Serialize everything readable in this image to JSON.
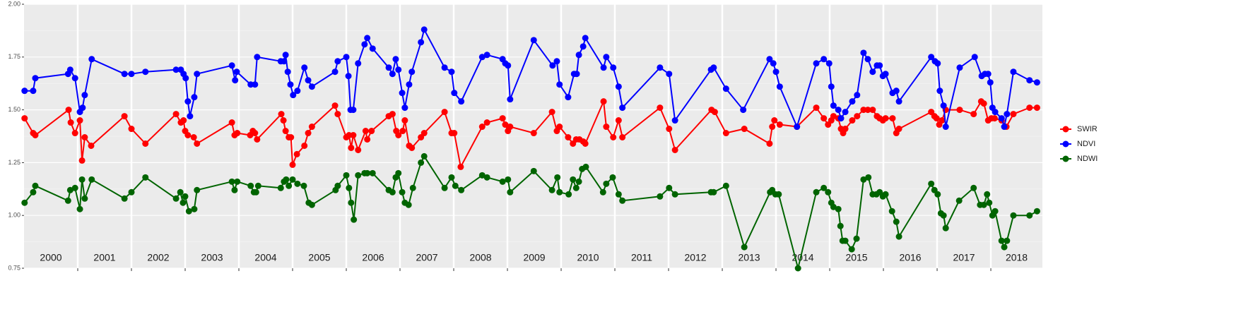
{
  "chart_data": {
    "type": "line",
    "xlim": [
      2000,
      2018.96
    ],
    "ylim": [
      0.75,
      2.0
    ],
    "yticks": [
      {
        "value": 0.75,
        "label": "0.75"
      },
      {
        "value": 1.0,
        "label": "1.00"
      },
      {
        "value": 1.25,
        "label": "1.25"
      },
      {
        "value": 1.5,
        "label": "1.50"
      },
      {
        "value": 1.75,
        "label": "1.75"
      },
      {
        "value": 2.0,
        "label": "2.00"
      }
    ],
    "yminor": [
      0.875,
      1.125,
      1.375,
      1.625,
      1.875
    ],
    "xticks": [
      2001,
      2002,
      2003,
      2004,
      2005,
      2006,
      2007,
      2008,
      2009,
      2010,
      2011,
      2012,
      2013,
      2014,
      2015,
      2016,
      2017,
      2018
    ],
    "year_labels": [
      "2000",
      "2001",
      "2002",
      "2003",
      "2004",
      "2005",
      "2006",
      "2007",
      "2008",
      "2009",
      "2010",
      "2011",
      "2012",
      "2013",
      "2014",
      "2015",
      "2016",
      "2017",
      "2018"
    ],
    "grid": true,
    "legend": "right",
    "series": [
      {
        "name": "SWIR",
        "color": "#ff0000",
        "x": [
          2000.01,
          2000.17,
          2000.21,
          2000.83,
          2000.87,
          2000.95,
          2001.04,
          2001.08,
          2001.13,
          2001.25,
          2001.87,
          2002.0,
          2002.26,
          2002.83,
          2002.92,
          2002.97,
          2003.0,
          2003.05,
          2003.16,
          2003.22,
          2003.87,
          2003.92,
          2003.97,
          2004.21,
          2004.26,
          2004.3,
          2004.34,
          2004.79,
          2004.83,
          2004.87,
          2004.93,
          2004.97,
          2005.0,
          2005.08,
          2005.22,
          2005.29,
          2005.36,
          2005.79,
          2005.84,
          2006.0,
          2006.05,
          2006.09,
          2006.13,
          2006.22,
          2006.36,
          2006.39,
          2006.47,
          2006.79,
          2006.86,
          2006.93,
          2006.97,
          2007.05,
          2007.09,
          2007.17,
          2007.22,
          2007.39,
          2007.45,
          2007.83,
          2007.96,
          2008.01,
          2008.13,
          2008.53,
          2008.62,
          2008.91,
          2008.96,
          2009.01,
          2009.05,
          2009.49,
          2009.83,
          2009.92,
          2009.97,
          2010.13,
          2010.22,
          2010.28,
          2010.34,
          2010.41,
          2010.45,
          2010.79,
          2010.84,
          2010.97,
          2011.07,
          2011.14,
          2011.84,
          2012.01,
          2012.12,
          2012.8,
          2012.86,
          2013.07,
          2013.41,
          2013.88,
          2013.93,
          2013.97,
          2014.07,
          2014.39,
          2014.75,
          2014.89,
          2014.97,
          2015.03,
          2015.07,
          2015.16,
          2015.21,
          2015.25,
          2015.29,
          2015.42,
          2015.51,
          2015.63,
          2015.71,
          2015.8,
          2015.88,
          2015.93,
          2015.99,
          2016.04,
          2016.17,
          2016.24,
          2016.29,
          2016.89,
          2016.95,
          2016.99,
          2017.04,
          2017.09,
          2017.16,
          2017.42,
          2017.68,
          2017.82,
          2017.87,
          2017.95,
          2018.01,
          2018.07,
          2018.2,
          2018.29,
          2018.42,
          2018.72,
          2018.86
        ],
        "values": [
          1.46,
          1.39,
          1.38,
          1.5,
          1.44,
          1.39,
          1.45,
          1.26,
          1.37,
          1.33,
          1.47,
          1.41,
          1.34,
          1.48,
          1.44,
          1.45,
          1.4,
          1.38,
          1.37,
          1.34,
          1.44,
          1.38,
          1.39,
          1.38,
          1.4,
          1.39,
          1.36,
          1.48,
          1.45,
          1.4,
          1.37,
          1.37,
          1.24,
          1.29,
          1.33,
          1.39,
          1.42,
          1.52,
          1.48,
          1.37,
          1.38,
          1.32,
          1.38,
          1.31,
          1.4,
          1.36,
          1.4,
          1.47,
          1.48,
          1.4,
          1.38,
          1.4,
          1.45,
          1.33,
          1.32,
          1.37,
          1.39,
          1.49,
          1.39,
          1.39,
          1.23,
          1.42,
          1.44,
          1.46,
          1.43,
          1.4,
          1.42,
          1.39,
          1.49,
          1.4,
          1.42,
          1.37,
          1.34,
          1.36,
          1.36,
          1.35,
          1.34,
          1.54,
          1.42,
          1.37,
          1.45,
          1.37,
          1.51,
          1.41,
          1.31,
          1.5,
          1.49,
          1.39,
          1.41,
          1.34,
          1.42,
          1.45,
          1.43,
          1.42,
          1.51,
          1.46,
          1.43,
          1.45,
          1.47,
          1.46,
          1.41,
          1.39,
          1.41,
          1.45,
          1.47,
          1.5,
          1.5,
          1.5,
          1.47,
          1.46,
          1.45,
          1.46,
          1.46,
          1.39,
          1.41,
          1.49,
          1.47,
          1.46,
          1.43,
          1.45,
          1.5,
          1.5,
          1.48,
          1.54,
          1.53,
          1.45,
          1.46,
          1.46,
          1.45,
          1.42,
          1.48,
          1.51,
          1.51
        ]
      },
      {
        "name": "NDVI",
        "color": "#0000ff",
        "x": [
          2000.01,
          2000.17,
          2000.21,
          2000.82,
          2000.86,
          2000.95,
          2001.04,
          2001.09,
          2001.13,
          2001.26,
          2001.87,
          2002.0,
          2002.26,
          2002.83,
          2002.92,
          2002.97,
          2003.01,
          2003.05,
          2003.09,
          2003.17,
          2003.22,
          2003.87,
          2003.93,
          2003.96,
          2004.22,
          2004.3,
          2004.34,
          2004.78,
          2004.84,
          2004.87,
          2004.91,
          2004.96,
          2005.01,
          2005.09,
          2005.22,
          2005.29,
          2005.36,
          2005.79,
          2005.84,
          2006.0,
          2006.04,
          2006.08,
          2006.13,
          2006.22,
          2006.34,
          2006.39,
          2006.49,
          2006.79,
          2006.86,
          2006.92,
          2006.97,
          2007.04,
          2007.09,
          2007.17,
          2007.22,
          2007.39,
          2007.45,
          2007.83,
          2007.96,
          2008.01,
          2008.14,
          2008.53,
          2008.62,
          2008.91,
          2008.96,
          2009.01,
          2009.05,
          2009.49,
          2009.84,
          2009.92,
          2009.97,
          2010.13,
          2010.24,
          2010.29,
          2010.33,
          2010.41,
          2010.45,
          2010.79,
          2010.84,
          2010.97,
          2011.07,
          2011.14,
          2011.84,
          2012.01,
          2012.12,
          2012.79,
          2012.84,
          2013.07,
          2013.39,
          2013.88,
          2013.95,
          2014.0,
          2014.07,
          2014.39,
          2014.75,
          2014.89,
          2014.99,
          2015.03,
          2015.07,
          2015.16,
          2015.21,
          2015.29,
          2015.42,
          2015.51,
          2015.63,
          2015.71,
          2015.8,
          2015.88,
          2015.93,
          2015.99,
          2016.04,
          2016.17,
          2016.24,
          2016.29,
          2016.89,
          2016.96,
          2017.01,
          2017.05,
          2017.12,
          2017.16,
          2017.42,
          2017.7,
          2017.83,
          2017.89,
          2017.95,
          2017.99,
          2018.03,
          2018.08,
          2018.2,
          2018.25,
          2018.3,
          2018.42,
          2018.72,
          2018.86
        ],
        "values": [
          1.59,
          1.59,
          1.65,
          1.67,
          1.69,
          1.65,
          1.49,
          1.51,
          1.57,
          1.74,
          1.67,
          1.67,
          1.68,
          1.69,
          1.69,
          1.67,
          1.65,
          1.54,
          1.47,
          1.56,
          1.67,
          1.71,
          1.64,
          1.68,
          1.62,
          1.62,
          1.75,
          1.73,
          1.73,
          1.76,
          1.68,
          1.62,
          1.57,
          1.59,
          1.7,
          1.64,
          1.61,
          1.68,
          1.73,
          1.75,
          1.66,
          1.5,
          1.5,
          1.72,
          1.81,
          1.84,
          1.79,
          1.7,
          1.67,
          1.74,
          1.69,
          1.58,
          1.51,
          1.62,
          1.68,
          1.82,
          1.88,
          1.7,
          1.68,
          1.58,
          1.54,
          1.75,
          1.76,
          1.74,
          1.72,
          1.71,
          1.55,
          1.83,
          1.71,
          1.73,
          1.62,
          1.56,
          1.67,
          1.67,
          1.76,
          1.8,
          1.84,
          1.7,
          1.75,
          1.7,
          1.61,
          1.51,
          1.7,
          1.67,
          1.45,
          1.69,
          1.7,
          1.6,
          1.5,
          1.74,
          1.72,
          1.68,
          1.61,
          1.42,
          1.72,
          1.74,
          1.72,
          1.61,
          1.52,
          1.5,
          1.46,
          1.49,
          1.54,
          1.57,
          1.77,
          1.74,
          1.68,
          1.71,
          1.71,
          1.66,
          1.67,
          1.58,
          1.59,
          1.54,
          1.75,
          1.73,
          1.72,
          1.59,
          1.52,
          1.42,
          1.7,
          1.75,
          1.66,
          1.67,
          1.67,
          1.63,
          1.51,
          1.49,
          1.46,
          1.42,
          1.48,
          1.68,
          1.64,
          1.63
        ]
      },
      {
        "name": "NDWI",
        "color": "#006400",
        "x": [
          2000.01,
          2000.17,
          2000.21,
          2000.82,
          2000.86,
          2000.95,
          2001.04,
          2001.08,
          2001.13,
          2001.26,
          2001.87,
          2002.0,
          2002.26,
          2002.83,
          2002.91,
          2002.96,
          2003.0,
          2003.07,
          2003.17,
          2003.22,
          2003.87,
          2003.92,
          2003.97,
          2004.22,
          2004.28,
          2004.32,
          2004.36,
          2004.78,
          2004.84,
          2004.88,
          2004.93,
          2005.0,
          2005.09,
          2005.21,
          2005.3,
          2005.36,
          2005.8,
          2005.84,
          2006.0,
          2006.05,
          2006.09,
          2006.14,
          2006.22,
          2006.34,
          2006.39,
          2006.49,
          2006.79,
          2006.86,
          2006.92,
          2006.97,
          2007.04,
          2007.09,
          2007.16,
          2007.24,
          2007.39,
          2007.45,
          2007.83,
          2007.96,
          2008.03,
          2008.14,
          2008.53,
          2008.62,
          2008.91,
          2009.01,
          2009.05,
          2009.49,
          2009.83,
          2009.93,
          2009.97,
          2010.14,
          2010.22,
          2010.28,
          2010.33,
          2010.39,
          2010.46,
          2010.78,
          2010.84,
          2010.96,
          2011.07,
          2011.14,
          2011.84,
          2012.01,
          2012.12,
          2012.79,
          2012.84,
          2013.07,
          2013.41,
          2013.89,
          2013.93,
          2013.99,
          2014.05,
          2014.41,
          2014.75,
          2014.89,
          2014.97,
          2015.03,
          2015.07,
          2015.16,
          2015.2,
          2015.24,
          2015.29,
          2015.41,
          2015.5,
          2015.63,
          2015.72,
          2015.8,
          2015.87,
          2015.93,
          2015.99,
          2016.04,
          2016.16,
          2016.24,
          2016.29,
          2016.89,
          2016.95,
          2017.01,
          2017.07,
          2017.12,
          2017.16,
          2017.41,
          2017.68,
          2017.8,
          2017.87,
          2017.93,
          2017.97,
          2018.03,
          2018.08,
          2018.2,
          2018.25,
          2018.3,
          2018.42,
          2018.72,
          2018.86
        ],
        "values": [
          1.06,
          1.11,
          1.14,
          1.07,
          1.12,
          1.13,
          1.03,
          1.17,
          1.08,
          1.17,
          1.08,
          1.11,
          1.18,
          1.08,
          1.11,
          1.06,
          1.09,
          1.02,
          1.03,
          1.12,
          1.16,
          1.12,
          1.16,
          1.14,
          1.11,
          1.11,
          1.14,
          1.13,
          1.16,
          1.17,
          1.14,
          1.17,
          1.15,
          1.14,
          1.06,
          1.05,
          1.12,
          1.14,
          1.19,
          1.13,
          1.06,
          0.98,
          1.19,
          1.2,
          1.2,
          1.2,
          1.12,
          1.11,
          1.18,
          1.2,
          1.11,
          1.06,
          1.05,
          1.13,
          1.25,
          1.28,
          1.13,
          1.18,
          1.14,
          1.12,
          1.19,
          1.18,
          1.16,
          1.17,
          1.11,
          1.21,
          1.12,
          1.18,
          1.11,
          1.1,
          1.17,
          1.13,
          1.16,
          1.22,
          1.23,
          1.11,
          1.15,
          1.18,
          1.1,
          1.07,
          1.09,
          1.13,
          1.1,
          1.11,
          1.11,
          1.14,
          0.85,
          1.11,
          1.12,
          1.1,
          1.1,
          0.75,
          1.11,
          1.13,
          1.11,
          1.06,
          1.04,
          1.03,
          0.95,
          0.88,
          0.88,
          0.84,
          0.89,
          1.17,
          1.18,
          1.1,
          1.1,
          1.11,
          1.09,
          1.1,
          1.02,
          0.97,
          0.9,
          1.15,
          1.12,
          1.1,
          1.01,
          1.0,
          0.94,
          1.07,
          1.13,
          1.05,
          1.05,
          1.1,
          1.06,
          1.0,
          1.02,
          0.88,
          0.85,
          0.88,
          1.0,
          1.0,
          1.02
        ]
      }
    ]
  }
}
